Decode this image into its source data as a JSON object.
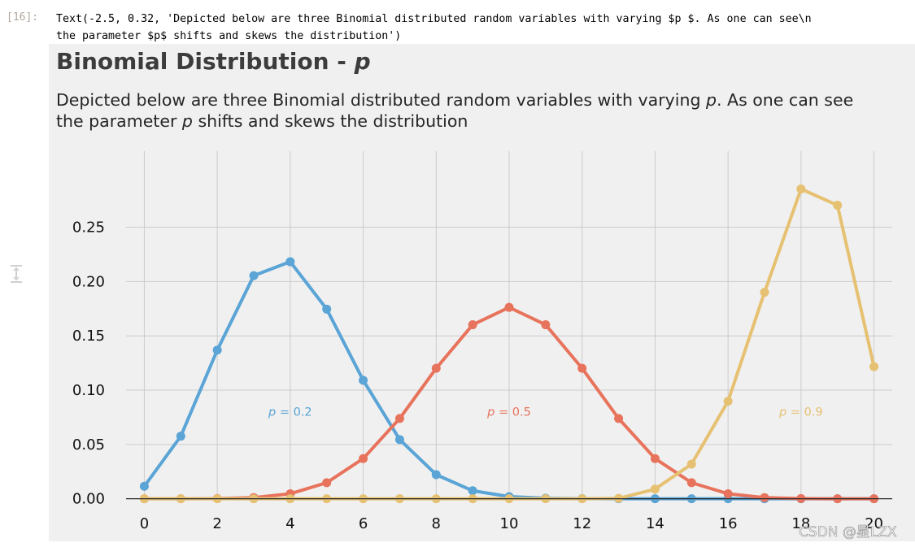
{
  "cell": {
    "prompt": "[16]:",
    "output_lines": [
      "Text(-2.5, 0.32, 'Depicted below are three Binomial distributed random variables with varying $p $. As one can see\\n",
      "the parameter $p$ shifts and skews the distribution')"
    ]
  },
  "watermark": "CSDN @星LZX",
  "chart_data": {
    "type": "line",
    "title": "Binomial Distribution - ",
    "title_var": "p",
    "subtitle_lines": [
      [
        "Depicted below are three Binomial distributed random variables with varying ",
        "p",
        ". As one can see"
      ],
      [
        "the parameter ",
        "p",
        " shifts and skews the distribution"
      ]
    ],
    "xlabel": "",
    "ylabel": "",
    "xlim": [
      -0.5,
      20.5
    ],
    "ylim": [
      -0.0025,
      0.32
    ],
    "xticks": [
      0,
      2,
      4,
      6,
      8,
      10,
      12,
      14,
      16,
      18,
      20
    ],
    "yticks": [
      "0.00",
      "0.05",
      "0.10",
      "0.15",
      "0.20",
      "0.25"
    ],
    "grid": true,
    "x": [
      0,
      1,
      2,
      3,
      4,
      5,
      6,
      7,
      8,
      9,
      10,
      11,
      12,
      13,
      14,
      15,
      16,
      17,
      18,
      19,
      20
    ],
    "series": [
      {
        "label_pre": "p",
        "label_post": " = 0.2",
        "label_x": 4,
        "label_y": 0.08,
        "color": "#5aa4d6",
        "values": [
          0.0115,
          0.0576,
          0.1369,
          0.2054,
          0.2182,
          0.1746,
          0.1091,
          0.0545,
          0.0222,
          0.0074,
          0.002,
          0.0005,
          0.0001,
          0.0,
          0.0,
          0.0,
          0.0,
          0.0,
          0.0,
          0.0,
          0.0
        ]
      },
      {
        "label_pre": "p",
        "label_post": " = 0.5",
        "label_x": 10,
        "label_y": 0.08,
        "color": "#e8735c",
        "values": [
          0.0,
          0.0,
          0.0002,
          0.0011,
          0.0046,
          0.0148,
          0.037,
          0.0739,
          0.1201,
          0.1602,
          0.1762,
          0.1602,
          0.1201,
          0.0739,
          0.037,
          0.0148,
          0.0046,
          0.0011,
          0.0002,
          0.0,
          0.0
        ]
      },
      {
        "label_pre": "p",
        "label_post": " = 0.9",
        "label_x": 18,
        "label_y": 0.08,
        "color": "#e6c172",
        "values": [
          0.0,
          0.0,
          0.0,
          0.0,
          0.0,
          0.0,
          0.0,
          0.0,
          0.0,
          0.0,
          0.0,
          0.0,
          0.0,
          0.0004,
          0.0089,
          0.0319,
          0.0898,
          0.1901,
          0.2852,
          0.2702,
          0.1216
        ]
      }
    ]
  }
}
